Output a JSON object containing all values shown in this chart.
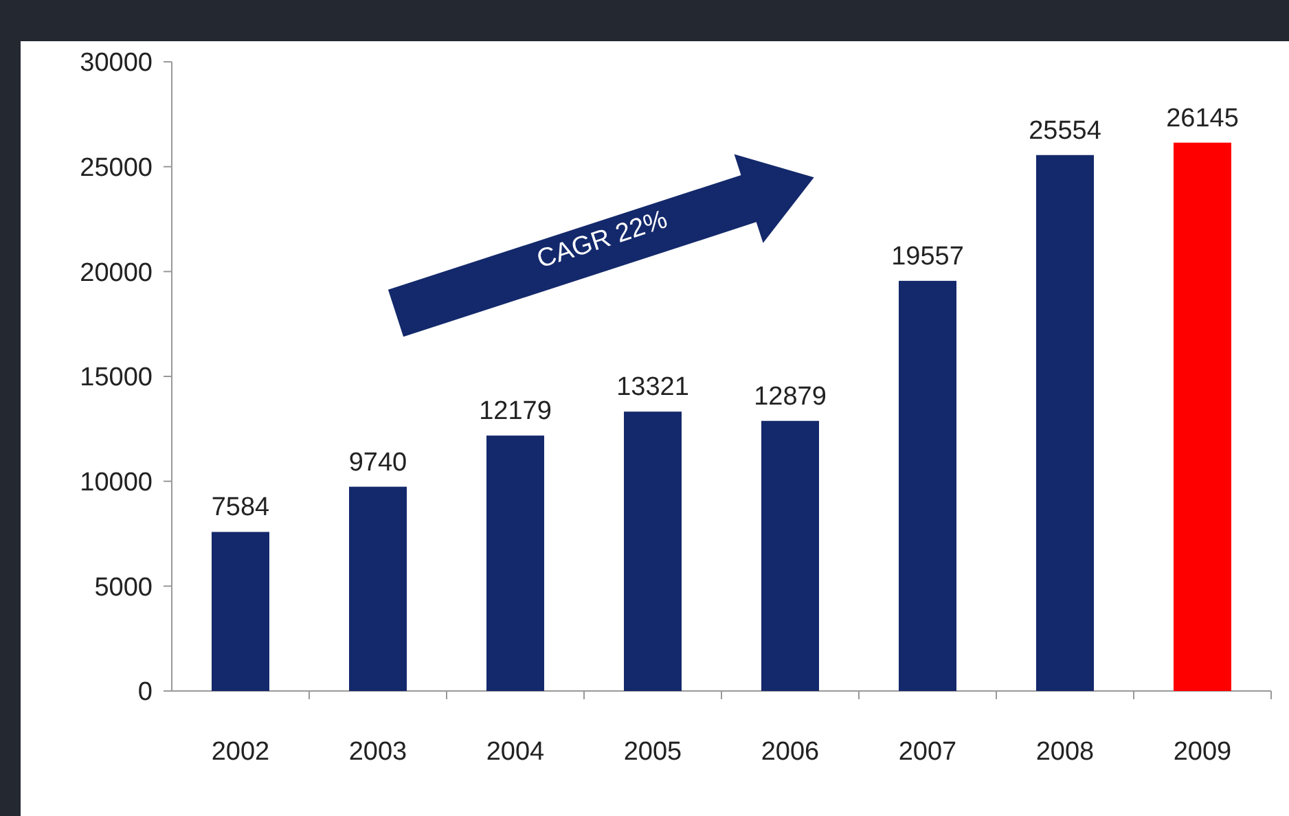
{
  "chart_data": {
    "type": "bar",
    "categories": [
      "2002",
      "2003",
      "2004",
      "2005",
      "2006",
      "2007",
      "2008",
      "2009"
    ],
    "values": [
      7584,
      9740,
      12179,
      13321,
      12879,
      19557,
      25554,
      26145
    ],
    "colors": [
      "#14296b",
      "#14296b",
      "#14296b",
      "#14296b",
      "#14296b",
      "#14296b",
      "#14296b",
      "#ff0000"
    ],
    "ylim": [
      0,
      30000
    ],
    "yticks": [
      0,
      5000,
      10000,
      15000,
      20000,
      25000,
      30000
    ],
    "data_labels": true,
    "grid": false,
    "annotations": [
      "CAGR 22%"
    ]
  }
}
